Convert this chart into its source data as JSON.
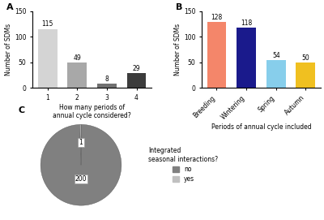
{
  "A": {
    "x": [
      1,
      2,
      3,
      4
    ],
    "values": [
      115,
      49,
      8,
      29
    ],
    "colors": [
      "#d4d4d4",
      "#a8a8a8",
      "#707070",
      "#3c3c3c"
    ],
    "xlabel": "How many periods of\nannual cycle considered?",
    "ylabel": "Number of SDMs",
    "ylim": [
      0,
      150
    ],
    "yticks": [
      0,
      50,
      100,
      150
    ],
    "label": "A"
  },
  "B": {
    "labels": [
      "Breeding",
      "Wintering",
      "Spring",
      "Autumn"
    ],
    "values": [
      128,
      118,
      54,
      50
    ],
    "colors": [
      "#f4866a",
      "#1a1a8c",
      "#87ceeb",
      "#f0c020"
    ],
    "xlabel": "Periods of annual cycle included",
    "ylabel": "Number of SDMs",
    "ylim": [
      0,
      150
    ],
    "yticks": [
      0,
      50,
      100,
      150
    ],
    "label": "B"
  },
  "C": {
    "values": [
      200,
      1
    ],
    "labels": [
      "no",
      "yes"
    ],
    "colors": [
      "#808080",
      "#c0c0c0"
    ],
    "legend_title": "Integrated\nseasonal interactions?",
    "label_200": "200",
    "label_1": "1",
    "label": "C"
  }
}
